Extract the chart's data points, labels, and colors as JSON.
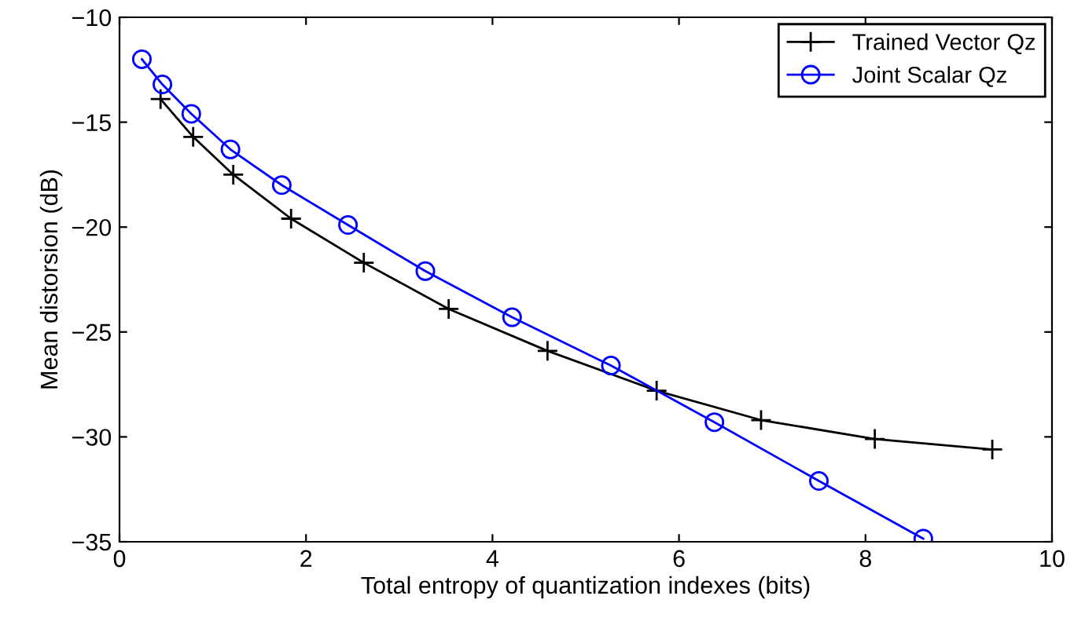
{
  "chart_data": {
    "type": "line",
    "xlabel": "Total entropy of quantization indexes (bits)",
    "ylabel": "Mean distorsion (dB)",
    "xlim": [
      0,
      10
    ],
    "ylim": [
      -35,
      -10
    ],
    "xticks": [
      0,
      2,
      4,
      6,
      8,
      10
    ],
    "yticks": [
      -35,
      -30,
      -25,
      -20,
      -15,
      -10
    ],
    "grid": false,
    "legend": "top right",
    "series": [
      {
        "name": "Trained Vector Qz",
        "color": "#000000",
        "marker": "cross",
        "x": [
          0.44,
          0.79,
          1.22,
          1.84,
          2.62,
          3.53,
          4.59,
          5.76,
          6.88,
          8.1,
          9.36
        ],
        "values": [
          -13.9,
          -15.7,
          -17.5,
          -19.6,
          -21.7,
          -23.9,
          -25.9,
          -27.8,
          -29.2,
          -30.1,
          -30.6
        ]
      },
      {
        "name": "Joint Scalar Qz",
        "color": "#0000ff",
        "marker": "circle",
        "x": [
          0.24,
          0.46,
          0.77,
          1.19,
          1.74,
          2.45,
          3.28,
          4.21,
          5.27,
          6.38,
          7.5,
          8.62
        ],
        "values": [
          -12.0,
          -13.2,
          -14.6,
          -16.3,
          -18.0,
          -19.9,
          -22.1,
          -24.3,
          -26.6,
          -29.3,
          -32.1,
          -34.85
        ]
      }
    ]
  }
}
